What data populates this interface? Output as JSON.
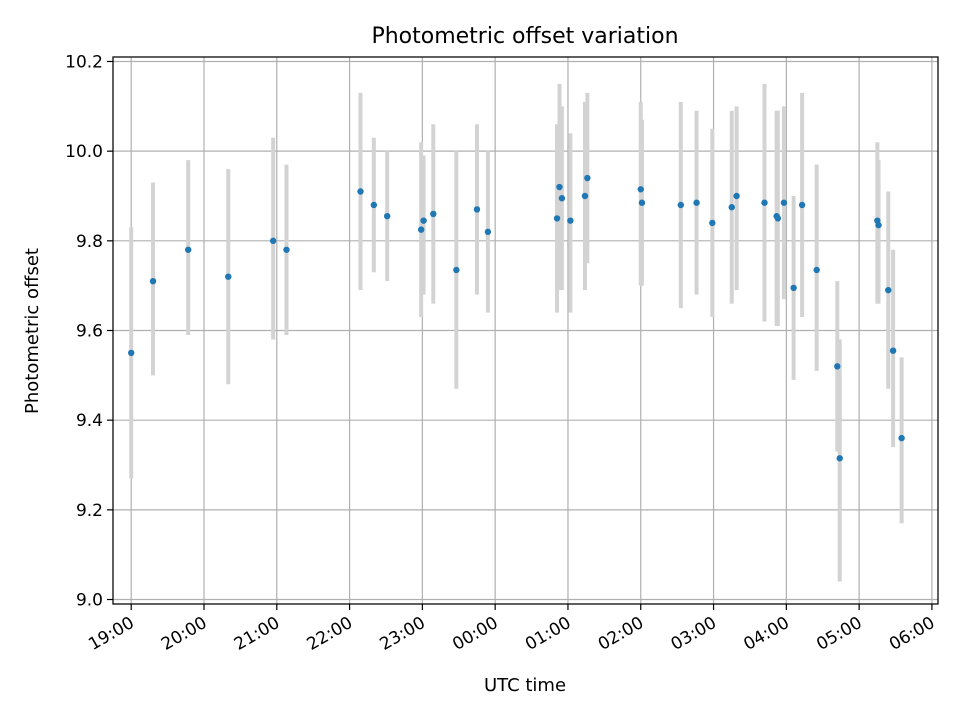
{
  "chart_data": {
    "type": "scatter",
    "title": "Photometric offset variation",
    "xlabel": "UTC time",
    "ylabel": "Photometric offset",
    "grid": true,
    "x_axis_type": "time",
    "xlim": [
      "18:45",
      "06:05"
    ],
    "ylim": [
      8.99,
      10.21
    ],
    "x_ticks": [
      "19:00",
      "20:00",
      "21:00",
      "22:00",
      "23:00",
      "00:00",
      "01:00",
      "02:00",
      "03:00",
      "04:00",
      "05:00",
      "06:00"
    ],
    "y_ticks": [
      "9.0",
      "9.2",
      "9.4",
      "9.6",
      "9.8",
      "10.0",
      "10.2"
    ],
    "marker_color": "#1f77b4",
    "errorbar_color": "#d3d3d3",
    "points": [
      {
        "x": "19:00",
        "y": 9.55,
        "ylow": 9.27,
        "yhigh": 9.83
      },
      {
        "x": "19:18",
        "y": 9.71,
        "ylow": 9.5,
        "yhigh": 9.93
      },
      {
        "x": "19:47",
        "y": 9.78,
        "ylow": 9.59,
        "yhigh": 9.98
      },
      {
        "x": "20:20",
        "y": 9.72,
        "ylow": 9.48,
        "yhigh": 9.96
      },
      {
        "x": "20:57",
        "y": 9.8,
        "ylow": 9.58,
        "yhigh": 10.03
      },
      {
        "x": "21:08",
        "y": 9.78,
        "ylow": 9.59,
        "yhigh": 9.97
      },
      {
        "x": "22:09",
        "y": 9.91,
        "ylow": 9.69,
        "yhigh": 10.13
      },
      {
        "x": "22:20",
        "y": 9.88,
        "ylow": 9.73,
        "yhigh": 10.03
      },
      {
        "x": "22:31",
        "y": 9.855,
        "ylow": 9.71,
        "yhigh": 10.0
      },
      {
        "x": "22:59",
        "y": 9.825,
        "ylow": 9.63,
        "yhigh": 10.02
      },
      {
        "x": "23:01",
        "y": 9.845,
        "ylow": 9.68,
        "yhigh": 9.99
      },
      {
        "x": "23:09",
        "y": 9.86,
        "ylow": 9.66,
        "yhigh": 10.06
      },
      {
        "x": "23:28",
        "y": 9.735,
        "ylow": 9.47,
        "yhigh": 10.0
      },
      {
        "x": "23:45",
        "y": 9.87,
        "ylow": 9.68,
        "yhigh": 10.06
      },
      {
        "x": "23:54",
        "y": 9.82,
        "ylow": 9.64,
        "yhigh": 10.0
      },
      {
        "x": "00:51",
        "y": 9.85,
        "ylow": 9.64,
        "yhigh": 10.06
      },
      {
        "x": "00:53",
        "y": 9.92,
        "ylow": 9.69,
        "yhigh": 10.15
      },
      {
        "x": "00:55",
        "y": 9.895,
        "ylow": 9.69,
        "yhigh": 10.1
      },
      {
        "x": "01:02",
        "y": 9.845,
        "ylow": 9.64,
        "yhigh": 10.04
      },
      {
        "x": "01:14",
        "y": 9.9,
        "ylow": 9.69,
        "yhigh": 10.11
      },
      {
        "x": "01:16",
        "y": 9.94,
        "ylow": 9.75,
        "yhigh": 10.13
      },
      {
        "x": "02:00",
        "y": 9.915,
        "ylow": 9.7,
        "yhigh": 10.11
      },
      {
        "x": "02:01",
        "y": 9.885,
        "ylow": 9.7,
        "yhigh": 10.07
      },
      {
        "x": "02:33",
        "y": 9.88,
        "ylow": 9.65,
        "yhigh": 10.11
      },
      {
        "x": "02:46",
        "y": 9.885,
        "ylow": 9.68,
        "yhigh": 10.09
      },
      {
        "x": "02:59",
        "y": 9.84,
        "ylow": 9.63,
        "yhigh": 10.05
      },
      {
        "x": "03:15",
        "y": 9.875,
        "ylow": 9.66,
        "yhigh": 10.09
      },
      {
        "x": "03:19",
        "y": 9.9,
        "ylow": 9.69,
        "yhigh": 10.1
      },
      {
        "x": "03:42",
        "y": 9.885,
        "ylow": 9.62,
        "yhigh": 10.15
      },
      {
        "x": "03:52",
        "y": 9.855,
        "ylow": 9.61,
        "yhigh": 10.09
      },
      {
        "x": "03:53",
        "y": 9.85,
        "ylow": 9.61,
        "yhigh": 10.09
      },
      {
        "x": "03:58",
        "y": 9.885,
        "ylow": 9.67,
        "yhigh": 10.1
      },
      {
        "x": "04:06",
        "y": 9.695,
        "ylow": 9.49,
        "yhigh": 9.9
      },
      {
        "x": "04:13",
        "y": 9.88,
        "ylow": 9.63,
        "yhigh": 10.13
      },
      {
        "x": "04:25",
        "y": 9.735,
        "ylow": 9.51,
        "yhigh": 9.97
      },
      {
        "x": "04:42",
        "y": 9.52,
        "ylow": 9.33,
        "yhigh": 9.71
      },
      {
        "x": "04:44",
        "y": 9.315,
        "ylow": 9.04,
        "yhigh": 9.58
      },
      {
        "x": "05:15",
        "y": 9.845,
        "ylow": 9.66,
        "yhigh": 10.02
      },
      {
        "x": "05:16",
        "y": 9.835,
        "ylow": 9.66,
        "yhigh": 9.98
      },
      {
        "x": "05:24",
        "y": 9.69,
        "ylow": 9.47,
        "yhigh": 9.91
      },
      {
        "x": "05:28",
        "y": 9.555,
        "ylow": 9.34,
        "yhigh": 9.78
      },
      {
        "x": "05:35",
        "y": 9.36,
        "ylow": 9.17,
        "yhigh": 9.54
      }
    ]
  }
}
